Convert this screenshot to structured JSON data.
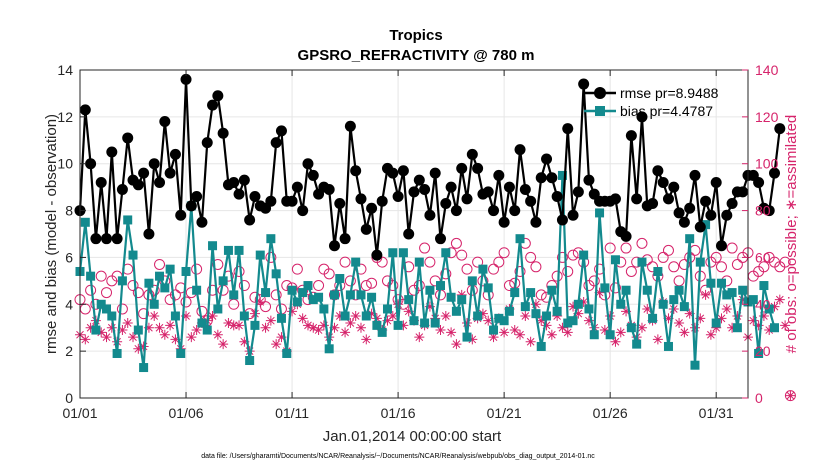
{
  "chart_data": {
    "type": "line",
    "title": "Tropics",
    "subtitle": "GPSRO_REFRACTIVITY @ 780 m",
    "xlabel": "Jan.01,2014 00:00:00 start",
    "ylabel": "rmse and bias (model - observation)",
    "y2label": "# of obs: o=possible; ∗=assimilated",
    "footer": "data file: /Users/gharamti/Documents/NCAR/Reanalysis/~/Documents/NCAR/Reanalysis/webpub/obs_diag_output_2014-01.nc",
    "xlim": [
      1,
      32.5
    ],
    "ylim": [
      0,
      14
    ],
    "y2lim": [
      0,
      140
    ],
    "x_ticks": [
      1,
      6,
      11,
      16,
      21,
      26,
      31
    ],
    "x_tick_labels": [
      "01/01",
      "01/06",
      "01/11",
      "01/16",
      "01/21",
      "01/26",
      "01/31"
    ],
    "y_ticks": [
      0,
      2,
      4,
      6,
      8,
      10,
      12,
      14
    ],
    "y2_ticks": [
      0,
      20,
      40,
      60,
      80,
      100,
      120,
      140
    ],
    "legend_position": "top-right",
    "time_step_days": 0.25,
    "series": [
      {
        "name": "rmse",
        "legend": "rmse pr=8.9488",
        "color": "#000000",
        "marker": "circle",
        "values": [
          8.0,
          12.3,
          10.0,
          6.8,
          9.2,
          6.8,
          10.5,
          6.8,
          8.9,
          11.1,
          9.3,
          9.1,
          9.6,
          7.0,
          10.0,
          9.2,
          11.8,
          9.6,
          10.4,
          7.8,
          13.6,
          8.2,
          8.6,
          7.5,
          10.9,
          12.5,
          12.9,
          11.3,
          9.1,
          9.2,
          8.7,
          9.3,
          7.6,
          8.6,
          8.2,
          8.1,
          8.4,
          10.9,
          11.4,
          8.4,
          8.4,
          9.0,
          8.0,
          10.0,
          9.5,
          8.7,
          9.0,
          8.9,
          6.5,
          8.3,
          6.8,
          11.6,
          9.7,
          8.5,
          7.2,
          8.1,
          6.1,
          8.4,
          9.8,
          9.6,
          8.6,
          9.7,
          7.0,
          8.8,
          9.3,
          8.9,
          7.8,
          9.6,
          6.8,
          8.3,
          9.0,
          8.0,
          9.8,
          8.5,
          10.4,
          9.8,
          8.7,
          8.8,
          8.0,
          9.5,
          7.5,
          9.0,
          8.0,
          10.6,
          8.9,
          8.4,
          7.5,
          9.4,
          10.2,
          9.4,
          8.6,
          7.6,
          11.5,
          7.8,
          8.8,
          13.4,
          9.3,
          8.7,
          8.4,
          8.4,
          8.4,
          8.5,
          7.1,
          6.9,
          11.2,
          8.5,
          12.0,
          8.2,
          8.3,
          9.7,
          9.2,
          8.5,
          9.0,
          7.9,
          7.5,
          8.1,
          9.5,
          7.3,
          8.4,
          7.8,
          9.2,
          6.5,
          7.8,
          8.3,
          8.8,
          8.8,
          9.5,
          9.5,
          9.2,
          8.1,
          8.0,
          9.6,
          11.5
        ]
      },
      {
        "name": "bias",
        "legend": "bias pr=4.4787",
        "color": "#138a8e",
        "marker": "square",
        "values": [
          5.4,
          7.5,
          5.2,
          2.9,
          4.0,
          3.8,
          3.5,
          1.9,
          5.0,
          7.6,
          6.1,
          2.9,
          1.3,
          4.9,
          4.0,
          5.2,
          4.7,
          5.5,
          3.5,
          1.9,
          5.4,
          8.2,
          4.6,
          3.2,
          2.9,
          6.5,
          3.8,
          5.0,
          6.3,
          4.4,
          6.3,
          3.5,
          1.6,
          3.1,
          6.1,
          4.5,
          6.8,
          5.3,
          3.4,
          1.9,
          4.6,
          4.1,
          4.5,
          4.8,
          4.2,
          4.3,
          3.8,
          2.1,
          4.4,
          5.1,
          3.5,
          4.4,
          5.8,
          4.4,
          3.5,
          4.3,
          3.1,
          2.8,
          3.8,
          6.2,
          3.1,
          6.2,
          4.2,
          3.3,
          5.8,
          3.2,
          4.6,
          3.2,
          4.8,
          6.2,
          4.3,
          3.7,
          4.2,
          2.6,
          5.0,
          3.5,
          5.5,
          4.7,
          2.9,
          3.4,
          3.3,
          3.7,
          4.5,
          6.8,
          3.9,
          4.5,
          3.6,
          2.2,
          3.5,
          4.6,
          3.7,
          9.5,
          3.2,
          3.3,
          4.0,
          6.1,
          3.8,
          2.7,
          7.9,
          4.7,
          2.7,
          5.9,
          4.0,
          4.6,
          3.0,
          2.3,
          5.8,
          4.6,
          3.4,
          5.4,
          4.0,
          2.2,
          4.2,
          4.6,
          3.9,
          6.8,
          1.4,
          5.8,
          7.4,
          4.9,
          3.2,
          4.9,
          4.4,
          4.5,
          3.0,
          4.6,
          4.1,
          4.2,
          1.9,
          4.8,
          3.8,
          3.0
        ]
      },
      {
        "name": "obs_possible",
        "axis": "right",
        "color": "#d6246b",
        "marker": "open-circle",
        "values": [
          42,
          38,
          46,
          40,
          52,
          45,
          50,
          52,
          38,
          55,
          48,
          45,
          36,
          44,
          46,
          57,
          50,
          42,
          44,
          47,
          41,
          45,
          55,
          37,
          33,
          46,
          57,
          46,
          52,
          40,
          54,
          48,
          36,
          43,
          42,
          39,
          60,
          44,
          38,
          48,
          47,
          55,
          46,
          42,
          43,
          48,
          55,
          53,
          44,
          48,
          58,
          50,
          44,
          55,
          48,
          49,
          60,
          58,
          50,
          48,
          42,
          40,
          56,
          46,
          48,
          64,
          58,
          50,
          44,
          53,
          62,
          66,
          61,
          55,
          46,
          58,
          50,
          44,
          55,
          58,
          62,
          48,
          49,
          54,
          66,
          60,
          56,
          44,
          43,
          48,
          52,
          60,
          54,
          61,
          62,
          58,
          48,
          50,
          55,
          44,
          64,
          47,
          58,
          64,
          54,
          58,
          66,
          59,
          56,
          52,
          60,
          63,
          56,
          50,
          57,
          60,
          63,
          52,
          46,
          58,
          60,
          56,
          50,
          64,
          57,
          60,
          62,
          52,
          54,
          56,
          60,
          58,
          56,
          58,
          1
        ]
      },
      {
        "name": "obs_assimilated",
        "axis": "right",
        "color": "#d6246b",
        "marker": "asterisk",
        "values": [
          27,
          25,
          30,
          33,
          28,
          26,
          30,
          24,
          29,
          32,
          26,
          21,
          22,
          30,
          35,
          30,
          27,
          31,
          25,
          21,
          35,
          26,
          29,
          32,
          33,
          35,
          27,
          23,
          32,
          31,
          31,
          24,
          20,
          36,
          41,
          30,
          33,
          23,
          26,
          20,
          37,
          40,
          34,
          31,
          30,
          29,
          31,
          26,
          30,
          35,
          28,
          32,
          35,
          30,
          25,
          36,
          34,
          29,
          33,
          35,
          40,
          31,
          37,
          33,
          26,
          31,
          39,
          34,
          29,
          35,
          28,
          23,
          44,
          32,
          25,
          34,
          36,
          33,
          26,
          34,
          28,
          38,
          29,
          27,
          35,
          24,
          40,
          33,
          31,
          27,
          35,
          30,
          28,
          39,
          36,
          41,
          33,
          30,
          45,
          29,
          35,
          24,
          28,
          37,
          31,
          26,
          30,
          38,
          33,
          25,
          41,
          34,
          38,
          32,
          28,
          36,
          30,
          34,
          44,
          27,
          30,
          34,
          38,
          30,
          35,
          42,
          26,
          33,
          31,
          35,
          29,
          39,
          42,
          31,
          1
        ]
      }
    ]
  }
}
